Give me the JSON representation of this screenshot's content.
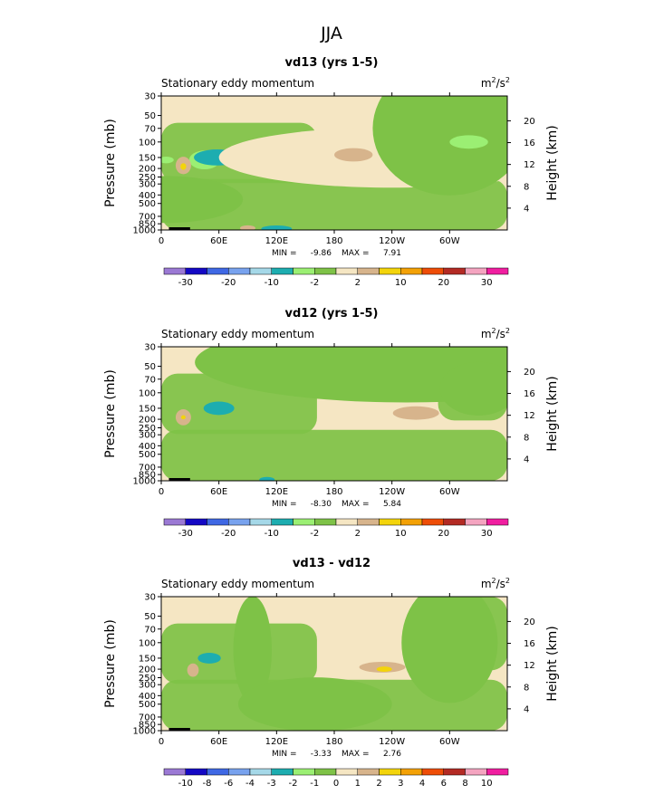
{
  "figure_title": "JJA",
  "colors": {
    "background_fill": "#f5e6c3",
    "levels": [
      "#9b79d4",
      "#1408c4",
      "#3f68e4",
      "#78a2ee",
      "#a5d8e8",
      "#1dadb0",
      "#9bef73",
      "#7ec247",
      "#f5e6c3",
      "#d7b48c",
      "#f3d40b",
      "#f3a106",
      "#ee4d07",
      "#b32a24",
      "#f4a4c0",
      "#f01ea0"
    ]
  },
  "chart_data": [
    {
      "type": "contour",
      "title": "vd13 (yrs 1-5)",
      "left_label": "Stationary eddy momentum",
      "units_base": "m",
      "units_exp1": "2",
      "units_mid": "/s",
      "units_exp2": "2",
      "ylabel": "Pressure (mb)",
      "y2label": "Height (km)",
      "x_ticks": [
        "0",
        "60E",
        "120E",
        "180",
        "120W",
        "60W"
      ],
      "x_tick_values": [
        0,
        60,
        120,
        180,
        240,
        300
      ],
      "xlim": [
        0,
        360
      ],
      "y_ticks": [
        "30",
        "50",
        "70",
        "100",
        "150",
        "200",
        "250",
        "300",
        "400",
        "500",
        "700",
        "850",
        "1000"
      ],
      "y_tick_values": [
        30,
        50,
        70,
        100,
        150,
        200,
        250,
        300,
        400,
        500,
        700,
        850,
        1000
      ],
      "ylim_mb": [
        1000,
        30
      ],
      "height_ticks": [
        "20",
        "16",
        "12",
        "8",
        "4"
      ],
      "height_values_km": [
        20,
        16,
        12,
        8,
        4
      ],
      "min_label": "MIN =",
      "min_value": "-9.86",
      "max_label": "MAX =",
      "max_value": "7.91",
      "colorbar_labels": [
        "-30",
        "-20",
        "-10",
        "-2",
        "2",
        "10",
        "20",
        "30"
      ],
      "blobs": [
        {
          "lon": 5,
          "lat_p": 450,
          "rx": 40,
          "ry": 0.35,
          "level": 7
        },
        {
          "lon": 45,
          "lat_p": 160,
          "rx": 8,
          "ry": 0.14,
          "level": 6
        },
        {
          "lon": 58,
          "lat_p": 150,
          "rx": 12,
          "ry": 0.12,
          "level": 5
        },
        {
          "lon": 23,
          "lat_p": 185,
          "rx": 4,
          "ry": 0.13,
          "level": 9
        },
        {
          "lon": 23,
          "lat_p": 190,
          "rx": 1.5,
          "ry": 0.05,
          "level": 10
        },
        {
          "lon": 5,
          "lat_p": 160,
          "rx": 4,
          "ry": 0.05,
          "level": 6
        },
        {
          "lon": 150,
          "lat_p": 130,
          "rx": 5,
          "ry": 0.05,
          "level": 6
        },
        {
          "lon": 255,
          "lat_p": 160,
          "rx": 10,
          "ry": 0.12,
          "level": 9
        },
        {
          "lon": 240,
          "lat_p": 150,
          "rx": 90,
          "ry": 0.45,
          "level": 8
        },
        {
          "lon": 300,
          "lat_p": 70,
          "rx": 40,
          "ry": 1.0,
          "level": 7
        },
        {
          "lon": 320,
          "lat_p": 100,
          "rx": 10,
          "ry": 0.1,
          "level": 6
        },
        {
          "lon": 200,
          "lat_p": 140,
          "rx": 10,
          "ry": 0.1,
          "level": 9
        },
        {
          "lon": 120,
          "lat_p": 970,
          "rx": 8,
          "ry": 0.05,
          "level": 5
        },
        {
          "lon": 90,
          "lat_p": 950,
          "rx": 4,
          "ry": 0.04,
          "level": 9
        }
      ]
    },
    {
      "type": "contour",
      "title": "vd12 (yrs 1-5)",
      "left_label": "Stationary eddy momentum",
      "units_base": "m",
      "units_exp1": "2",
      "units_mid": "/s",
      "units_exp2": "2",
      "ylabel": "Pressure (mb)",
      "y2label": "Height (km)",
      "x_ticks": [
        "0",
        "60E",
        "120E",
        "180",
        "120W",
        "60W"
      ],
      "x_tick_values": [
        0,
        60,
        120,
        180,
        240,
        300
      ],
      "xlim": [
        0,
        360
      ],
      "y_ticks": [
        "30",
        "50",
        "70",
        "100",
        "150",
        "200",
        "250",
        "300",
        "400",
        "500",
        "700",
        "850",
        "1000"
      ],
      "y_tick_values": [
        30,
        50,
        70,
        100,
        150,
        200,
        250,
        300,
        400,
        500,
        700,
        850,
        1000
      ],
      "ylim_mb": [
        1000,
        30
      ],
      "height_ticks": [
        "20",
        "16",
        "12",
        "8",
        "4"
      ],
      "height_values_km": [
        20,
        16,
        12,
        8,
        4
      ],
      "min_label": "MIN =",
      "min_value": "-8.30",
      "max_label": "MAX =",
      "max_value": "5.84",
      "colorbar_labels": [
        "-30",
        "-20",
        "-10",
        "-2",
        "2",
        "10",
        "20",
        "30"
      ],
      "blobs": [
        {
          "lon": 60,
          "lat_p": 150,
          "rx": 8,
          "ry": 0.1,
          "level": 5
        },
        {
          "lon": 23,
          "lat_p": 190,
          "rx": 4,
          "ry": 0.12,
          "level": 9
        },
        {
          "lon": 23,
          "lat_p": 190,
          "rx": 1.2,
          "ry": 0.03,
          "level": 10
        },
        {
          "lon": 265,
          "lat_p": 170,
          "rx": 12,
          "ry": 0.1,
          "level": 9
        },
        {
          "lon": 255,
          "lat_p": 45,
          "rx": 110,
          "ry": 0.6,
          "level": 7
        },
        {
          "lon": 330,
          "lat_p": 90,
          "rx": 20,
          "ry": 0.4,
          "level": 7
        },
        {
          "lon": 110,
          "lat_p": 970,
          "rx": 4,
          "ry": 0.04,
          "level": 5
        }
      ]
    },
    {
      "type": "contour",
      "title": "vd13 - vd12",
      "left_label": "Stationary eddy momentum",
      "units_base": "m",
      "units_exp1": "2",
      "units_mid": "/s",
      "units_exp2": "2",
      "ylabel": "Pressure (mb)",
      "y2label": "Height (km)",
      "x_ticks": [
        "0",
        "60E",
        "120E",
        "180",
        "120W",
        "60W"
      ],
      "x_tick_values": [
        0,
        60,
        120,
        180,
        240,
        300
      ],
      "xlim": [
        0,
        360
      ],
      "y_ticks": [
        "30",
        "50",
        "70",
        "100",
        "150",
        "200",
        "250",
        "300",
        "400",
        "500",
        "700",
        "850",
        "1000"
      ],
      "y_tick_values": [
        30,
        50,
        70,
        100,
        150,
        200,
        250,
        300,
        400,
        500,
        700,
        850,
        1000
      ],
      "ylim_mb": [
        1000,
        30
      ],
      "height_ticks": [
        "20",
        "16",
        "12",
        "8",
        "4"
      ],
      "height_values_km": [
        20,
        16,
        12,
        8,
        4
      ],
      "min_label": "MIN =",
      "min_value": "-3.33",
      "max_label": "MAX =",
      "max_value": "2.76",
      "colorbar_labels": [
        "-10",
        "-8",
        "-6",
        "-4",
        "-3",
        "-2",
        "-1",
        "0",
        "1",
        "2",
        "3",
        "4",
        "6",
        "8",
        "10"
      ],
      "blobs": [
        {
          "lon": 50,
          "lat_p": 150,
          "rx": 6,
          "ry": 0.08,
          "level": 5
        },
        {
          "lon": 33,
          "lat_p": 205,
          "rx": 3,
          "ry": 0.1,
          "level": 9
        },
        {
          "lon": 230,
          "lat_p": 190,
          "rx": 12,
          "ry": 0.08,
          "level": 9
        },
        {
          "lon": 232,
          "lat_p": 200,
          "rx": 4,
          "ry": 0.04,
          "level": 10
        },
        {
          "lon": 280,
          "lat_p": 155,
          "rx": 6,
          "ry": 0.07,
          "level": 5
        },
        {
          "lon": 95,
          "lat_p": 120,
          "rx": 10,
          "ry": 0.8,
          "level": 7
        },
        {
          "lon": 300,
          "lat_p": 100,
          "rx": 25,
          "ry": 0.9,
          "level": 7
        },
        {
          "lon": 160,
          "lat_p": 500,
          "rx": 40,
          "ry": 0.4,
          "level": 7
        }
      ]
    }
  ]
}
